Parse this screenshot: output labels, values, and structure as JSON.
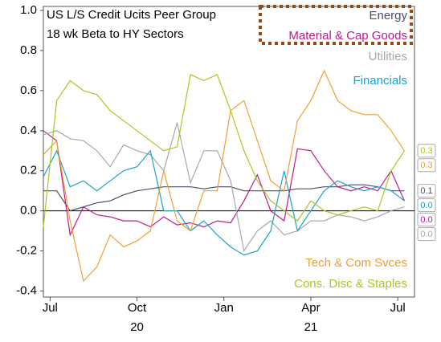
{
  "chart_data": {
    "type": "line",
    "title": "US L/S Credit Ucits Peer Group",
    "subtitle": "18 wk Beta to HY Sectors",
    "x": [
      0,
      2,
      4,
      6,
      8,
      10,
      12,
      14,
      16,
      18,
      20,
      22,
      24,
      26,
      28,
      30,
      32,
      34,
      36,
      38,
      40,
      42,
      44,
      46,
      48,
      50,
      52,
      54
    ],
    "xlim": [
      0,
      55.5
    ],
    "xticks": [
      {
        "value": 1,
        "label": "Jul"
      },
      {
        "value": 14,
        "label": "Oct"
      },
      {
        "value": 27,
        "label": "Jan"
      },
      {
        "value": 40,
        "label": "Apr"
      },
      {
        "value": 53,
        "label": "Jul"
      }
    ],
    "annotations": [
      {
        "x": 14,
        "text": "20"
      },
      {
        "x": 40,
        "text": "21"
      }
    ],
    "ylim": [
      -0.43,
      1.02
    ],
    "yticks": [
      {
        "value": 1.0,
        "label": "1.0"
      },
      0.8,
      0.6,
      0.4,
      0.2,
      {
        "value": 0.0,
        "label": "0.0"
      },
      -0.2,
      -0.4
    ],
    "reference_line": 0,
    "series": [
      {
        "name": "Energy",
        "color": "#4b4b6e",
        "end_label": "0.1",
        "values": [
          0.1,
          0.1,
          0.0,
          0.02,
          0.04,
          0.05,
          0.08,
          0.1,
          0.11,
          0.12,
          0.12,
          0.12,
          0.11,
          0.12,
          0.12,
          0.1,
          0.1,
          0.1,
          0.1,
          0.11,
          0.11,
          0.12,
          0.12,
          0.13,
          0.13,
          0.12,
          0.1,
          0.1
        ]
      },
      {
        "name": "Material & Cap Goods",
        "color": "#c0188c",
        "end_label": "0.0",
        "values": [
          0.4,
          0.35,
          -0.12,
          0.02,
          -0.02,
          -0.03,
          -0.05,
          -0.05,
          -0.08,
          -0.03,
          -0.07,
          -0.06,
          -0.08,
          -0.05,
          -0.06,
          0.05,
          0.18,
          0.0,
          -0.05,
          0.31,
          0.3,
          0.2,
          0.12,
          0.1,
          0.12,
          0.1,
          0.2,
          0.05
        ]
      },
      {
        "name": "Utilities",
        "color": "#a8a8a8",
        "end_label": "0.0",
        "values": [
          0.38,
          0.4,
          0.36,
          0.35,
          0.3,
          0.22,
          0.33,
          0.3,
          0.28,
          0.2,
          0.44,
          0.14,
          0.3,
          0.3,
          0.15,
          -0.2,
          -0.1,
          -0.05,
          -0.12,
          -0.1,
          -0.05,
          -0.05,
          -0.02,
          -0.03,
          -0.05,
          -0.03,
          0.0,
          0.02
        ]
      },
      {
        "name": "Financials",
        "color": "#1aa3c8",
        "end_label": "0.0",
        "values": [
          0.17,
          0.3,
          0.12,
          0.15,
          0.1,
          0.15,
          0.2,
          0.22,
          0.3,
          0.0,
          0.0,
          -0.1,
          -0.05,
          -0.12,
          -0.18,
          -0.22,
          -0.2,
          -0.1,
          0.2,
          -0.1,
          0.0,
          0.1,
          0.15,
          0.12,
          0.1,
          0.12,
          0.1,
          0.05
        ]
      },
      {
        "name": "Tech & Com Svces",
        "color": "#f0a030",
        "end_label": "0.3",
        "values": [
          0.28,
          0.35,
          -0.05,
          -0.35,
          -0.28,
          -0.12,
          -0.18,
          -0.15,
          -0.1,
          0.2,
          -0.05,
          -0.1,
          0.1,
          0.1,
          0.5,
          0.55,
          0.35,
          0.15,
          0.1,
          0.45,
          0.55,
          0.7,
          0.55,
          0.5,
          0.48,
          0.48,
          0.4,
          0.3
        ]
      },
      {
        "name": "Cons. Disc & Staples",
        "color": "#a8c820",
        "end_label": "0.3",
        "values": [
          -0.08,
          0.55,
          0.65,
          0.6,
          0.58,
          0.5,
          0.45,
          0.4,
          0.35,
          0.3,
          0.32,
          0.68,
          0.65,
          0.68,
          0.5,
          0.3,
          0.15,
          0.05,
          0.0,
          -0.05,
          0.05,
          0.0,
          -0.02,
          0.0,
          0.02,
          0.0,
          0.2,
          0.3
        ]
      }
    ]
  }
}
